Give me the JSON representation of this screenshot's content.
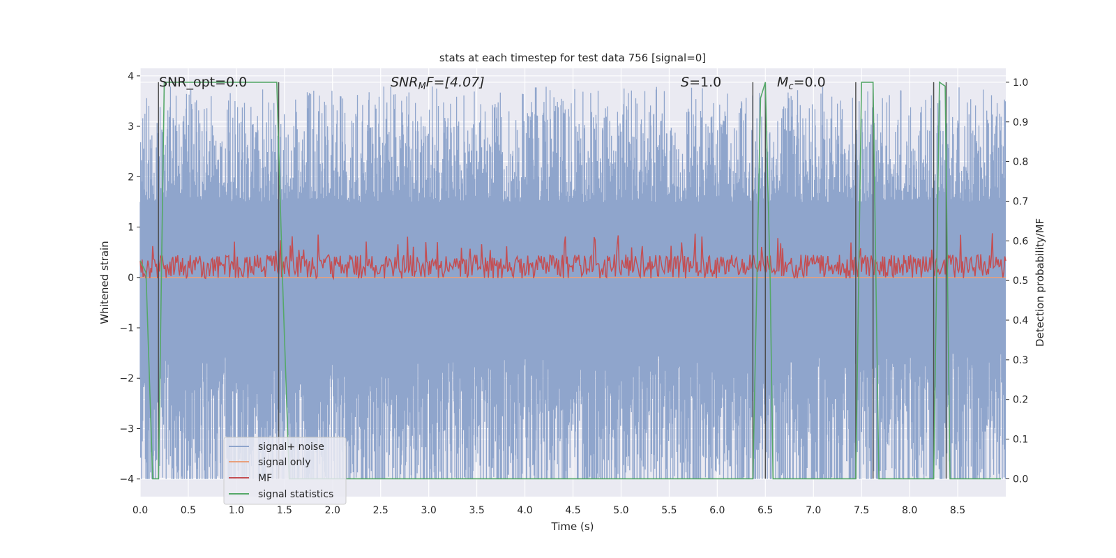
{
  "chart_data": {
    "type": "line",
    "title": "stats at each timestep for test data 756 [signal=0]",
    "xlabel": "Time (s)",
    "ylabel": "Whitened strain",
    "y2label": "Detection probability/MF",
    "xlim": [
      0.0,
      9.0
    ],
    "ylim": [
      -4.35,
      4.15
    ],
    "y2lim": [
      -0.045,
      1.035
    ],
    "xticks": [
      "0.0",
      "0.5",
      "1.0",
      "1.5",
      "2.0",
      "2.5",
      "3.0",
      "3.5",
      "4.0",
      "4.5",
      "5.0",
      "5.5",
      "6.0",
      "6.5",
      "7.0",
      "7.5",
      "8.0",
      "8.5"
    ],
    "xtick_values": [
      0,
      0.5,
      1,
      1.5,
      2,
      2.5,
      3,
      3.5,
      4,
      4.5,
      5,
      5.5,
      6,
      6.5,
      7,
      7.5,
      8,
      8.5
    ],
    "yticks": [
      "4",
      "3",
      "2",
      "1",
      "0",
      "−1",
      "−2",
      "−3",
      "−4"
    ],
    "ytick_values": [
      4,
      3,
      2,
      1,
      0,
      -1,
      -2,
      -3,
      -4
    ],
    "y2ticks": [
      "1.0",
      "0.9",
      "0.8",
      "0.7",
      "0.6",
      "0.5",
      "0.4",
      "0.3",
      "0.2",
      "0.1",
      "0.0"
    ],
    "y2tick_values": [
      1.0,
      0.9,
      0.8,
      0.7,
      0.6,
      0.5,
      0.4,
      0.3,
      0.2,
      0.1,
      0.0
    ],
    "grid": true,
    "legend_position": "lower-left",
    "annotations": {
      "snr_opt": "SNR_opt=0.0",
      "snr_mf_italic": "SNR",
      "snr_mf_sub": "M",
      "snr_mf_rest": "F=[4.07]",
      "s_italic": "S",
      "s_rest": "=1.0",
      "mc_italic": "M",
      "mc_sub": "c",
      "mc_rest": "=0.0"
    },
    "series": [
      {
        "name": "signal+ noise",
        "axis": "left",
        "color": "#8fa5cc",
        "envelope": {
          "core_low": -1.5,
          "core_high": 1.5,
          "peak_high": 3.8,
          "peak_low": -4.0
        }
      },
      {
        "name": "signal only",
        "axis": "left",
        "color": "#e8a07c",
        "values": "zero"
      },
      {
        "name": "MF",
        "axis": "right",
        "color": "#c44e52",
        "envelope": {
          "mean": 0.535,
          "spread": 0.03,
          "max": 0.62,
          "min": 0.5
        }
      },
      {
        "name": "signal statistics",
        "axis": "right",
        "color": "#55a868",
        "points": [
          [
            0.0,
            0.55
          ],
          [
            0.06,
            0.52
          ],
          [
            0.13,
            0.0
          ],
          [
            0.19,
            0.0
          ],
          [
            0.25,
            1.0
          ],
          [
            1.42,
            1.0
          ],
          [
            1.48,
            0.5
          ],
          [
            1.55,
            0.0
          ],
          [
            6.37,
            0.0
          ],
          [
            6.45,
            0.96
          ],
          [
            6.5,
            1.0
          ],
          [
            6.55,
            0.5
          ],
          [
            6.58,
            0.0
          ],
          [
            7.44,
            0.0
          ],
          [
            7.5,
            1.0
          ],
          [
            7.62,
            1.0
          ],
          [
            7.68,
            0.0
          ],
          [
            8.25,
            0.0
          ],
          [
            8.31,
            1.0
          ],
          [
            8.37,
            0.99
          ],
          [
            8.42,
            0.0
          ],
          [
            8.95,
            0.0
          ]
        ]
      }
    ],
    "vertical_markers": {
      "color": "#4d4d4d",
      "x": [
        0.19,
        1.44,
        6.37,
        6.5,
        7.44,
        7.62,
        8.25,
        8.38
      ]
    }
  }
}
